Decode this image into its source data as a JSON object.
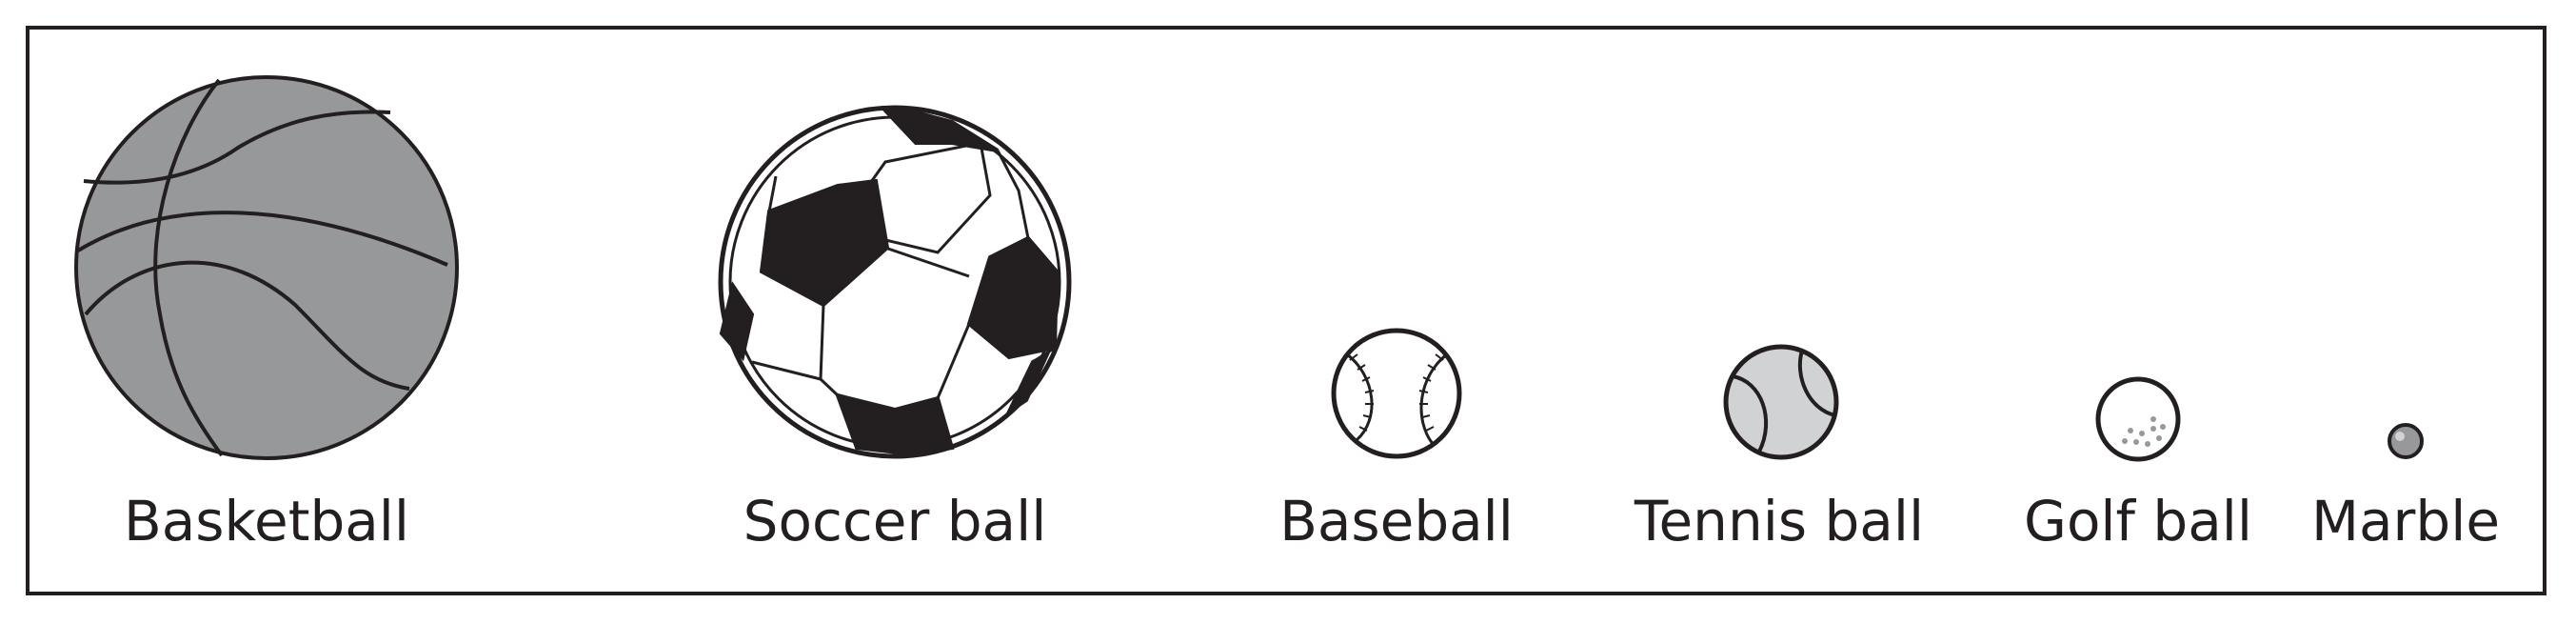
{
  "items": [
    {
      "label": "Basketball"
    },
    {
      "label": "Soccer ball"
    },
    {
      "label": "Baseball"
    },
    {
      "label": "Tennis ball"
    },
    {
      "label": "Golf ball"
    },
    {
      "label": "Marble"
    }
  ],
  "colors": {
    "outline": "#231f20",
    "basketball_fill": "#97989a",
    "tennis_fill": "#d1d2d4",
    "marble_fill": "#97989a"
  }
}
